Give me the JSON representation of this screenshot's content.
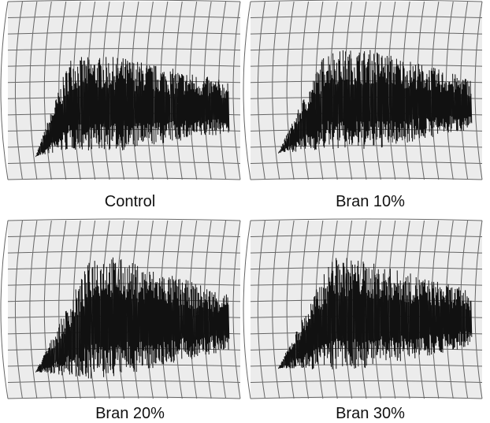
{
  "panels": [
    {
      "label": "Control"
    },
    {
      "label": "Bran 10%"
    },
    {
      "label": "Bran 20%"
    },
    {
      "label": "Bran 30%"
    }
  ]
}
